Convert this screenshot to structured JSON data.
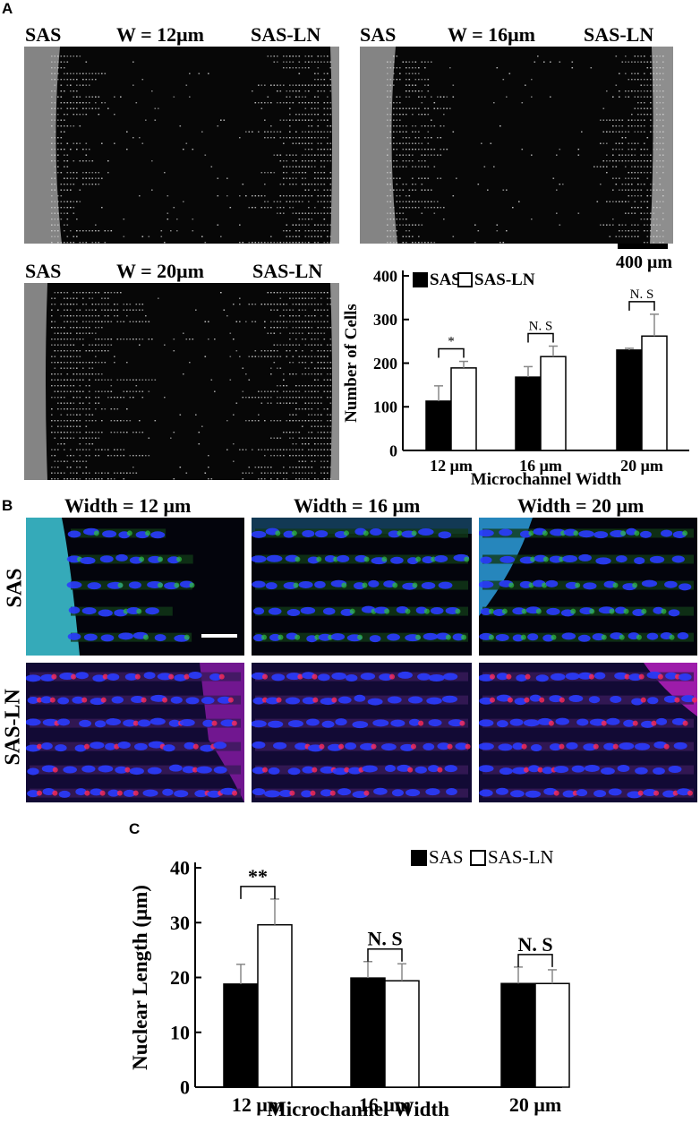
{
  "panel_a": {
    "letter": "A",
    "images": [
      {
        "left_label": "SAS",
        "width_label": "W = 12μm",
        "right_label": "SAS-LN"
      },
      {
        "left_label": "SAS",
        "width_label": "W = 16μm",
        "right_label": "SAS-LN"
      },
      {
        "left_label": "SAS",
        "width_label": "W = 20μm",
        "right_label": "SAS-LN"
      }
    ],
    "scale_bar_label": "400 μm"
  },
  "panel_b": {
    "letter": "B",
    "column_labels": [
      "Width = 12 μm",
      "Width = 16 μm",
      "Width = 20 μm"
    ],
    "row_labels": [
      "SAS",
      "SAS-LN"
    ]
  },
  "panel_c": {
    "letter": "C"
  },
  "colors": {
    "bar_sas": "#000000",
    "bar_sasln": "#ffffff",
    "sas_stain": "#2a3cff",
    "sasln_stain": "#ff2a55"
  },
  "chart_data": [
    {
      "type": "bar",
      "categories": [
        "12 μm",
        "16 μm",
        "20 μm"
      ],
      "series": [
        {
          "name": "SAS",
          "values": [
            113,
            168,
            230
          ],
          "errors": [
            35,
            24,
            4
          ]
        },
        {
          "name": "SAS-LN",
          "values": [
            189,
            215,
            262
          ],
          "errors": [
            15,
            24,
            50
          ]
        }
      ],
      "significance": [
        "*",
        "N. S",
        "N. S"
      ],
      "xlabel": "Microchannel Width",
      "ylabel": "Number of Cells",
      "ylim": [
        0,
        400
      ],
      "yticks": [
        "0",
        "100",
        "200",
        "300",
        "400"
      ],
      "legend_position": "top"
    },
    {
      "type": "bar",
      "categories": [
        "12 μm",
        "16 μm",
        "20 μm"
      ],
      "series": [
        {
          "name": "SAS",
          "values": [
            18.8,
            19.9,
            18.9
          ],
          "errors": [
            3.6,
            3.0,
            3.0
          ]
        },
        {
          "name": "SAS-LN",
          "values": [
            29.6,
            19.4,
            18.9
          ],
          "errors": [
            4.7,
            3.1,
            2.5
          ]
        }
      ],
      "significance": [
        "**",
        "N. S",
        "N. S"
      ],
      "xlabel": "Microchannel Width",
      "ylabel": "Nuclear Length (μm)",
      "ylim": [
        0,
        40
      ],
      "yticks": [
        "0",
        "10",
        "20",
        "30",
        "40"
      ],
      "legend_position": "top-right"
    }
  ]
}
